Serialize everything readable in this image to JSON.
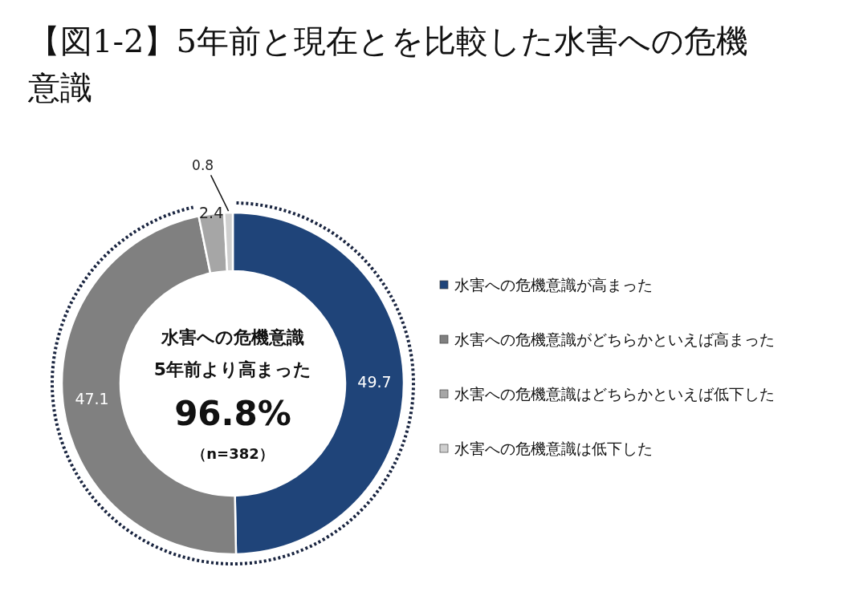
{
  "chart_data": {
    "type": "donut",
    "title": "【図1-2】5年前と現在とを比較した水害への危機意識",
    "categories": [
      "水害への危機意識が高まった",
      "水害への危機意識がどちらかといえば高まった",
      "水害への危機意識はどちらかといえば低下した",
      "水害への危機意識は低下した"
    ],
    "values": [
      49.7,
      47.1,
      2.4,
      0.8
    ],
    "colors": [
      "#1f4479",
      "#808080",
      "#a6a6a6",
      "#cfcfcf"
    ],
    "data_labels": true,
    "legend": "right",
    "annotations": [
      "水害への危機意識",
      "5年前より高まった",
      "96.8%",
      "（n=382）"
    ]
  }
}
